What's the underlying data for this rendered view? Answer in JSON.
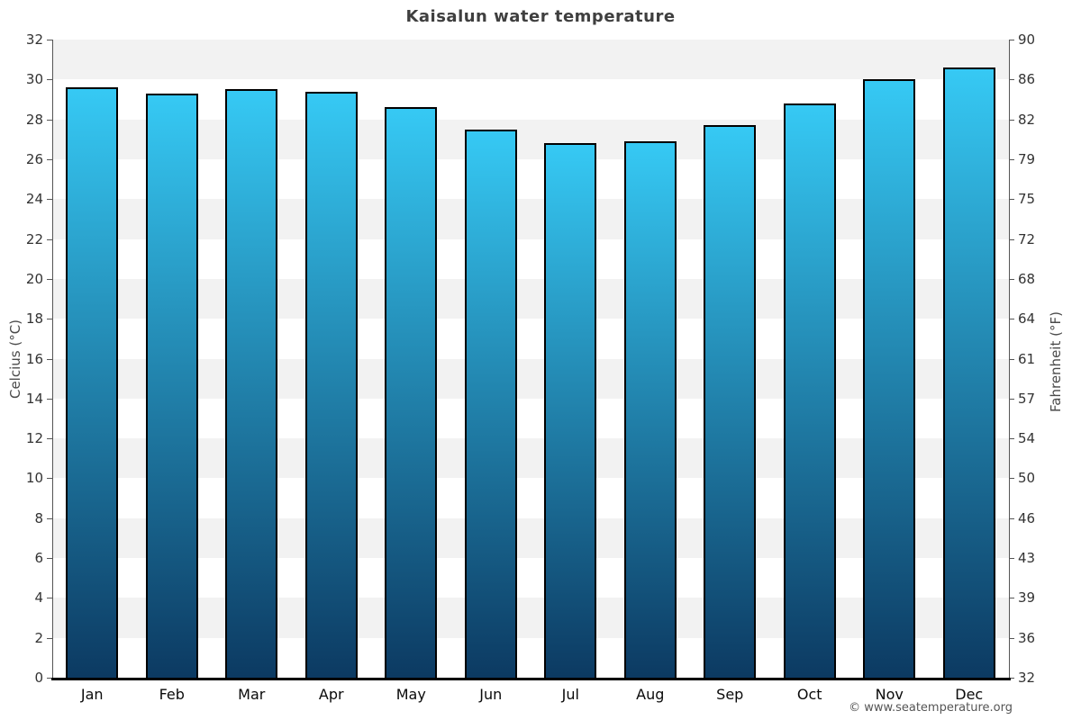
{
  "title": "Kaisalun water temperature",
  "footer": {
    "credit": "© www.seatemperature.org"
  },
  "chart_data": {
    "type": "bar",
    "title": "Kaisalun water temperature",
    "categories": [
      "Jan",
      "Feb",
      "Mar",
      "Apr",
      "May",
      "Jun",
      "Jul",
      "Aug",
      "Sep",
      "Oct",
      "Nov",
      "Dec"
    ],
    "values": [
      29.6,
      29.3,
      29.5,
      29.4,
      28.6,
      27.5,
      26.8,
      26.9,
      27.7,
      28.8,
      30.0,
      30.6
    ],
    "unit": "°C",
    "xlabel": "",
    "ylabel_left": "Celcius (°C)",
    "ylabel_right": "Fahrenheit (°F)",
    "ylim": [
      0,
      32
    ],
    "ytick_step": 2,
    "yticks_left": [
      "32",
      "30",
      "28",
      "26",
      "24",
      "22",
      "20",
      "18",
      "16",
      "14",
      "12",
      "10",
      "8",
      "6",
      "4",
      "2",
      "0"
    ],
    "yticks_right": [
      "90",
      "86",
      "82",
      "79",
      "75",
      "72",
      "68",
      "64",
      "61",
      "57",
      "54",
      "50",
      "46",
      "43",
      "39",
      "36",
      "32"
    ],
    "grid": "alternating-horizontal-bands",
    "legend": "none",
    "colors": {
      "bar_gradient_top": "#36c9f4",
      "bar_gradient_bottom": "#0c3a62",
      "bar_border": "#000000",
      "band_gray": "#f2f2f2",
      "band_white": "#ffffff",
      "title_text": "#3f3f3f",
      "tick_text": "#333333",
      "axis_title_text": "#4a4a4a",
      "credit_text": "#555555"
    }
  }
}
